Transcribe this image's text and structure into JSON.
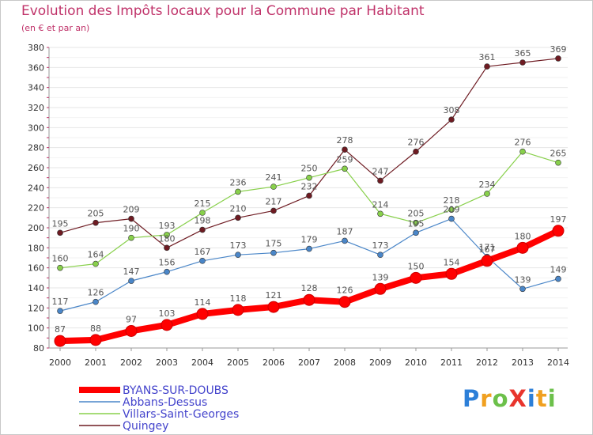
{
  "chart_data": {
    "type": "line",
    "title": "Evolution des Impôts locaux pour la Commune par Habitant",
    "subtitle": "(en € et par an)",
    "x": [
      "2000",
      "2001",
      "2002",
      "2003",
      "2004",
      "2005",
      "2006",
      "2007",
      "2008",
      "2009",
      "2010",
      "2011",
      "2012",
      "2013",
      "2014"
    ],
    "ylim": [
      80,
      380
    ],
    "yticks": [
      80,
      100,
      120,
      140,
      160,
      180,
      200,
      220,
      240,
      260,
      280,
      300,
      320,
      340,
      360,
      380
    ],
    "grid": "horizontal",
    "legend_position": "bottom-left",
    "series": [
      {
        "name": "BYANS-SUR-DOUBS",
        "color": "#ff0000",
        "values": [
          87,
          88,
          97,
          103,
          114,
          118,
          121,
          128,
          126,
          139,
          150,
          154,
          167,
          180,
          197
        ]
      },
      {
        "name": "Abbans-Dessus",
        "color": "#4a86c8",
        "values": [
          117,
          126,
          147,
          156,
          167,
          173,
          175,
          179,
          187,
          173,
          195,
          209,
          171,
          139,
          149
        ]
      },
      {
        "name": "Villars-Saint-Georges",
        "color": "#88d04b",
        "values": [
          160,
          164,
          190,
          193,
          215,
          236,
          241,
          250,
          259,
          214,
          205,
          218,
          234,
          276,
          265
        ]
      },
      {
        "name": "Quingey",
        "color": "#6e1b22",
        "values": [
          195,
          205,
          209,
          180,
          198,
          210,
          217,
          232,
          278,
          247,
          276,
          308,
          361,
          365,
          369
        ]
      }
    ]
  },
  "logo": {
    "letters": [
      {
        "ch": "P",
        "color": "#2c7fd8"
      },
      {
        "ch": "r",
        "color": "#f0a020"
      },
      {
        "ch": "o",
        "color": "#6cc04a"
      },
      {
        "ch": "X",
        "color": "#e8352d"
      },
      {
        "ch": "i",
        "color": "#2c7fd8"
      },
      {
        "ch": "t",
        "color": "#f0a020"
      },
      {
        "ch": "i",
        "color": "#6cc04a"
      }
    ]
  }
}
